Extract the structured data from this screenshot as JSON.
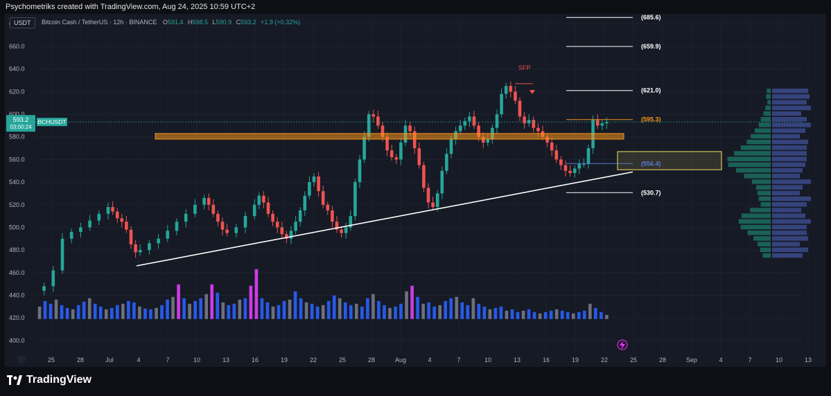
{
  "attribution": "Psychometriks created with TradingView.com, Aug 24, 2025 10:59 UTC+2",
  "currency_badge": "USDT",
  "legend": {
    "symbol": "Bitcoin Cash / TetherUS · 12h · BINANCE",
    "o_label": "O",
    "o": "591.4",
    "h_label": "H",
    "h": "598.5",
    "l_label": "L",
    "l": "590.9",
    "c_label": "C",
    "c": "593.2",
    "change": "+1.9 (+0.32%)"
  },
  "brand": "TradingView",
  "colors": {
    "up": "#26a69a",
    "down": "#ef5350",
    "vol_blue": "#2962ff",
    "vol_grey": "#787b86",
    "vol_magenta": "#e040fb",
    "zone_orange": "#f7931a",
    "zone_yellow": "#f5e960",
    "bg": "#161a25"
  },
  "chart_data": {
    "type": "candlestick",
    "ylim": [
      395,
      690
    ],
    "y_ticks": [
      "680.0",
      "660.0",
      "640.0",
      "620.0",
      "600.0",
      "580.0",
      "560.0",
      "540.0",
      "520.0",
      "500.0",
      "480.0",
      "460.0",
      "440.0",
      "420.0",
      "400.0"
    ],
    "x_ticks": [
      "25",
      "28",
      "Jul",
      "4",
      "7",
      "10",
      "13",
      "16",
      "19",
      "22",
      "25",
      "28",
      "Aug",
      "4",
      "7",
      "10",
      "13",
      "16",
      "19",
      "22",
      "25",
      "28",
      "Sep",
      "4",
      "7",
      "10",
      "13"
    ],
    "last_price": {
      "price": "593.2",
      "symbol": "BCHUSDT",
      "countdown": "03:00:24"
    },
    "series": [
      {
        "name": "candles",
        "ohlc_keyframes": [
          [
            1,
            448
          ],
          [
            3,
            462
          ],
          [
            5,
            490
          ],
          [
            7,
            496
          ],
          [
            9,
            500
          ],
          [
            11,
            506
          ],
          [
            13,
            512
          ],
          [
            15,
            518
          ],
          [
            16,
            514
          ],
          [
            17,
            508
          ],
          [
            18,
            505
          ],
          [
            19,
            498
          ],
          [
            20,
            485
          ],
          [
            21,
            478
          ],
          [
            22,
            480
          ],
          [
            24,
            486
          ],
          [
            26,
            490
          ],
          [
            28,
            497
          ],
          [
            30,
            505
          ],
          [
            32,
            512
          ],
          [
            34,
            520
          ],
          [
            36,
            526
          ],
          [
            37,
            520
          ],
          [
            38,
            512
          ],
          [
            39,
            505
          ],
          [
            40,
            498
          ],
          [
            41,
            495
          ],
          [
            43,
            500
          ],
          [
            45,
            510
          ],
          [
            47,
            520
          ],
          [
            48,
            528
          ],
          [
            49,
            522
          ],
          [
            50,
            512
          ],
          [
            51,
            505
          ],
          [
            52,
            500
          ],
          [
            53,
            494
          ],
          [
            54,
            490
          ],
          [
            55,
            497
          ],
          [
            56,
            505
          ],
          [
            57,
            515
          ],
          [
            58,
            528
          ],
          [
            59,
            540
          ],
          [
            60,
            545
          ],
          [
            61,
            532
          ],
          [
            62,
            520
          ],
          [
            63,
            515
          ],
          [
            64,
            505
          ],
          [
            65,
            498
          ],
          [
            66,
            495
          ],
          [
            67,
            500
          ],
          [
            68,
            510
          ],
          [
            69,
            540
          ],
          [
            70,
            560
          ],
          [
            71,
            580
          ],
          [
            72,
            600
          ],
          [
            73,
            598
          ],
          [
            74,
            590
          ],
          [
            75,
            580
          ],
          [
            76,
            568
          ],
          [
            77,
            562
          ],
          [
            78,
            560
          ],
          [
            79,
            575
          ],
          [
            80,
            590
          ],
          [
            81,
            585
          ],
          [
            82,
            570
          ],
          [
            83,
            555
          ],
          [
            84,
            535
          ],
          [
            85,
            522
          ],
          [
            86,
            518
          ],
          [
            87,
            530
          ],
          [
            88,
            550
          ],
          [
            89,
            565
          ],
          [
            90,
            578
          ],
          [
            91,
            585
          ],
          [
            92,
            590
          ],
          [
            93,
            594
          ],
          [
            94,
            598
          ],
          [
            95,
            590
          ],
          [
            96,
            580
          ],
          [
            97,
            575
          ],
          [
            98,
            578
          ],
          [
            99,
            588
          ],
          [
            100,
            600
          ],
          [
            101,
            618
          ],
          [
            102,
            625
          ],
          [
            103,
            620
          ],
          [
            104,
            612
          ],
          [
            105,
            598
          ],
          [
            106,
            592
          ],
          [
            107,
            595
          ],
          [
            108,
            588
          ],
          [
            109,
            585
          ],
          [
            110,
            580
          ],
          [
            111,
            575
          ],
          [
            112,
            568
          ],
          [
            113,
            560
          ],
          [
            114,
            555
          ],
          [
            115,
            550
          ],
          [
            116,
            548
          ],
          [
            117,
            552
          ],
          [
            118,
            556
          ],
          [
            119,
            556
          ],
          [
            120,
            570
          ],
          [
            121,
            595
          ],
          [
            122,
            590
          ],
          [
            123,
            592
          ],
          [
            124,
            593.2
          ]
        ]
      }
    ],
    "levels": [
      {
        "label": "(685.6)",
        "price": 685.6
      },
      {
        "label": "(659.9)",
        "price": 659.9
      },
      {
        "label": "(621.0)",
        "price": 621.0
      },
      {
        "label": "(595.3)",
        "price": 595.3
      },
      {
        "label": "(556.4)",
        "price": 556.4
      },
      {
        "label": "(530.7)",
        "price": 530.7
      }
    ],
    "annotations": [
      {
        "text": "SFP",
        "price": 641
      }
    ],
    "trendline": {
      "from": [
        "Jul 3",
        466
      ],
      "to": [
        "Aug 24",
        549
      ]
    },
    "zones": [
      {
        "name": "orange-zone",
        "from_price": 578,
        "to_price": 583
      },
      {
        "name": "yellow-zone",
        "from_price": 551,
        "to_price": 567
      }
    ],
    "volume": {
      "values_keyframes": [
        18,
        26,
        22,
        28,
        20,
        16,
        14,
        20,
        25,
        30,
        22,
        18,
        14,
        16,
        20,
        22,
        26,
        24,
        18,
        15,
        14,
        16,
        20,
        28,
        32,
        50,
        30,
        22,
        26,
        30,
        36,
        50,
        38,
        24,
        20,
        22,
        28,
        30,
        48,
        72,
        30,
        24,
        18,
        20,
        26,
        28,
        40,
        30,
        24,
        22,
        18,
        20,
        26,
        34,
        30,
        24,
        20,
        22,
        18,
        30,
        36,
        26,
        20,
        16,
        18,
        22,
        40,
        48,
        32,
        22,
        24,
        18,
        20,
        26,
        30,
        32,
        24,
        20,
        30,
        22,
        18,
        14,
        16,
        18,
        12,
        14,
        10,
        12,
        14,
        10,
        8,
        10,
        12,
        14,
        12,
        10,
        8,
        10,
        12,
        22,
        16,
        10,
        6
      ]
    }
  }
}
